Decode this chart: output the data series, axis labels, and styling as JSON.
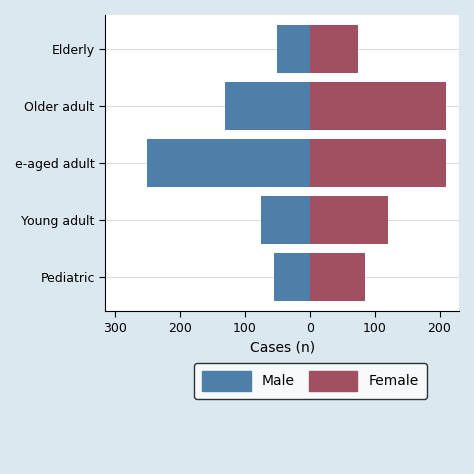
{
  "categories": [
    "Pediatric",
    "Young adult",
    "Middle-aged adult",
    "Older adult",
    "Elderly"
  ],
  "male_values": [
    55,
    75,
    250,
    130,
    50
  ],
  "female_values": [
    85,
    120,
    210,
    210,
    75
  ],
  "male_color": "#4d7fa8",
  "female_color": "#a05060",
  "xlabel": "Cases (n)",
  "xlim": [
    -315,
    230
  ],
  "xticks": [
    -300,
    -200,
    -100,
    0,
    100,
    200
  ],
  "xticklabels": [
    "300",
    "200",
    "100",
    "0",
    "100",
    "200"
  ],
  "background_color": "#dce8f0",
  "plot_background": "#ffffff",
  "legend_male": "Male",
  "legend_female": "Female",
  "bar_height": 0.85
}
